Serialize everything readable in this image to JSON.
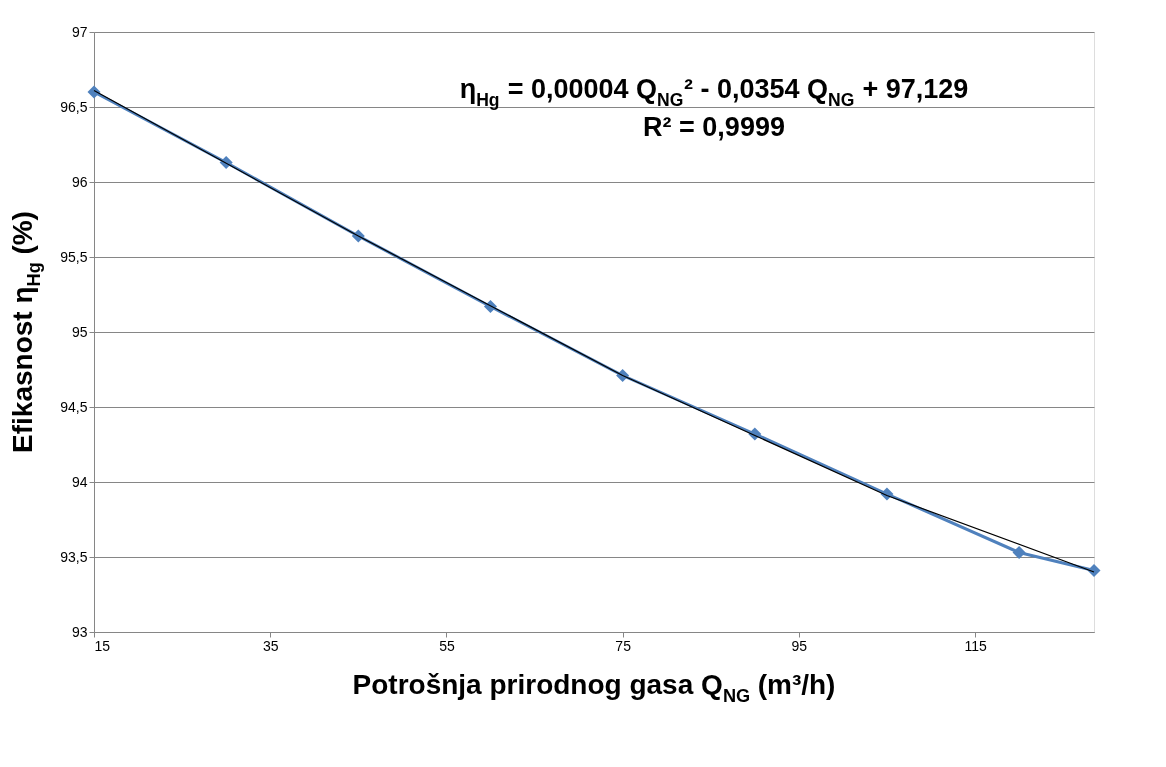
{
  "chart_data": {
    "type": "line",
    "xlabel": "Potrošnja prirodnog gasa Q$_{NG}$ (m³/h)",
    "ylabel": "Efikasnost η$_{Hg}$ (%)",
    "x": [
      15,
      30,
      45,
      60,
      75,
      90,
      105,
      120,
      128.5
    ],
    "series": [
      {
        "color": "#4f81bd",
        "values": [
          96.6,
          96.13,
          95.64,
          95.17,
          94.71,
          94.32,
          93.92,
          93.53,
          93.41
        ],
        "marker": "diamond",
        "line_style": "solid"
      },
      {
        "type": "line",
        "color": "#000000",
        "x": [
          15,
          45,
          75,
          105,
          128.5
        ],
        "values": [
          96.61,
          95.64,
          94.71,
          93.91,
          93.4
        ],
        "marker": "none",
        "line_style": "solid"
      }
    ],
    "xlim": [
      15,
      128.5
    ],
    "xticks": [
      15,
      35,
      55,
      75,
      95,
      115
    ],
    "ylim": [
      93,
      97
    ],
    "yticks": [
      93,
      {
        "value": 93.5,
        "label": "93,5"
      },
      94,
      {
        "value": 94.5,
        "label": "94,5"
      },
      95,
      {
        "value": 95.5,
        "label": "95,5"
      },
      96,
      {
        "value": 96.5,
        "label": "96,5"
      },
      97
    ],
    "grid": "y",
    "annotations": [
      "η$_{Hg}$ = 0,00004 Q$_{NG}$² - 0,0354 Q$_{NG}$ + 97,129",
      "R² = 0,9999"
    ]
  }
}
